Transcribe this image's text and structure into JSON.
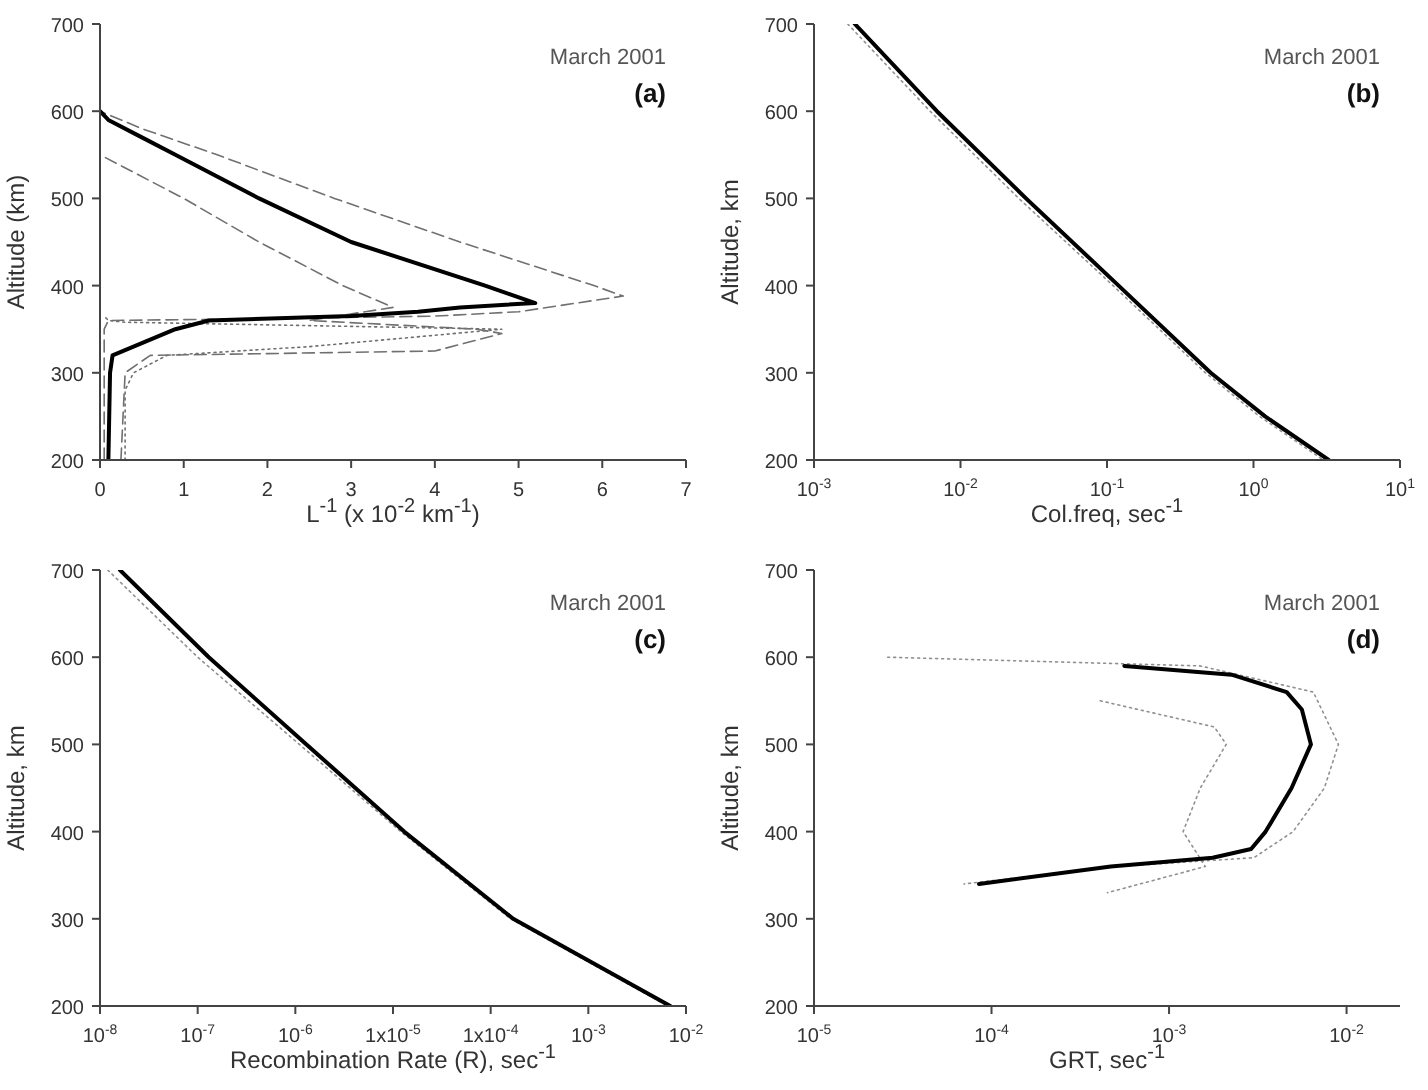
{
  "chart_data": [
    {
      "type": "line",
      "xlabel": "L$^{-1}$ (x 10$^{-2}$ km$^{-1}$)",
      "ylabel": "Altitude (km)",
      "annotations": [
        "March 2001",
        "(a)"
      ],
      "xlim": [
        0,
        7
      ],
      "xticks": [
        0,
        1,
        2,
        3,
        4,
        5,
        6,
        7
      ],
      "ylim": [
        200,
        700
      ],
      "yticks": [
        200,
        300,
        400,
        500,
        600,
        700
      ],
      "marker": "none",
      "series": [
        {
          "color": "#707070",
          "line_style": "dashed",
          "x": [
            0.05,
            0.05,
            0.1,
            2,
            4,
            5,
            6.25,
            5.9,
            4.3,
            2.8,
            1.4,
            0.5,
            0
          ],
          "values": [
            200,
            350,
            360,
            362,
            365,
            370,
            388,
            400,
            450,
            500,
            550,
            580,
            600
          ]
        },
        {
          "color": "#707070",
          "line_style": "dashed",
          "x": [
            0.25,
            0.3,
            0.6,
            2,
            4,
            4.8,
            4.5,
            2.5,
            3.5,
            2.9,
            1.9,
            1,
            0
          ],
          "values": [
            200,
            300,
            320,
            322,
            325,
            345,
            350,
            360,
            375,
            400,
            450,
            500,
            550
          ]
        },
        {
          "color": "#707070",
          "line_style": "dotted",
          "x": [
            0.3,
            0.3,
            0.4,
            0.8,
            2.5,
            4.8,
            2,
            0.3,
            0.1,
            0.05
          ],
          "values": [
            200,
            280,
            300,
            320,
            330,
            350,
            355,
            358,
            360,
            365
          ]
        },
        {
          "color": "#000000",
          "line_style": "solid",
          "x": [
            0.1,
            0.12,
            0.15,
            0.9,
            1.3,
            3,
            3.8,
            4.3,
            5.2,
            4.9,
            4.6,
            3,
            1.9,
            0.9,
            0.5,
            0.1,
            0
          ],
          "values": [
            200,
            300,
            320,
            350,
            360,
            365,
            370,
            375,
            380,
            390,
            400,
            450,
            500,
            550,
            570,
            590,
            600
          ]
        }
      ]
    },
    {
      "type": "line",
      "xlabel": "Col.freq, sec$^{-1}$",
      "ylabel": "Altitude, km",
      "annotations": [
        "March 2001",
        "(b)"
      ],
      "log": "x",
      "xlim": [
        0.001,
        10
      ],
      "xticks": [
        {
          "value": 0.001,
          "label": "10$^{-3}$"
        },
        {
          "value": 0.01,
          "label": "10$^{-2}$"
        },
        {
          "value": 0.1,
          "label": "10$^{-1}$"
        },
        {
          "value": 1,
          "label": "10$^{0}$"
        },
        {
          "value": 10,
          "label": "10$^{1}$"
        }
      ],
      "ylim": [
        200,
        700
      ],
      "yticks": [
        200,
        300,
        400,
        500,
        600,
        700
      ],
      "marker": "none",
      "series": [
        {
          "color": "#909090",
          "line_style": "dotted",
          "x": [
            0.0017,
            0.0062,
            0.025,
            0.11,
            0.47,
            1.1,
            3.0
          ],
          "values": [
            700,
            600,
            500,
            400,
            300,
            250,
            200
          ]
        },
        {
          "color": "#000000",
          "line_style": "solid",
          "x": [
            0.0019,
            0.0069,
            0.028,
            0.12,
            0.51,
            1.2,
            3.26
          ],
          "values": [
            700,
            600,
            500,
            400,
            300,
            250,
            200
          ]
        }
      ]
    },
    {
      "type": "line",
      "xlabel": "Recombination Rate (R), sec$^{-1}$",
      "ylabel": "Altitude, km",
      "annotations": [
        "March 2001",
        "(c)"
      ],
      "log": "x",
      "xlim": [
        1e-08,
        0.01
      ],
      "xticks": [
        {
          "value": 1e-08,
          "label": "10$^{-8}$"
        },
        {
          "value": 1e-07,
          "label": "10$^{-7}$"
        },
        {
          "value": 1e-06,
          "label": "10$^{-6}$"
        },
        {
          "value": 1e-05,
          "label": "1x10$^{-5}$"
        },
        {
          "value": 0.0001,
          "label": "1x10$^{-4}$"
        },
        {
          "value": 0.001,
          "label": "10$^{-3}$"
        },
        {
          "value": 0.01,
          "label": "10$^{-2}$"
        }
      ],
      "ylim": [
        200,
        700
      ],
      "yticks": [
        200,
        300,
        400,
        500,
        600,
        700
      ],
      "marker": "none",
      "series": [
        {
          "color": "#909090",
          "line_style": "dotted",
          "x": [
            1.2e-08,
            1e-07,
            1.1e-06,
            1.2e-05,
            0.00016,
            0.0065
          ],
          "values": [
            700,
            600,
            500,
            400,
            300,
            200
          ]
        },
        {
          "color": "#000000",
          "line_style": "solid",
          "x": [
            1.6e-08,
            1.3e-07,
            1.3e-06,
            1.3e-05,
            0.00017,
            0.0069
          ],
          "values": [
            700,
            600,
            500,
            400,
            300,
            200
          ]
        }
      ]
    },
    {
      "type": "line",
      "xlabel": "GRT, sec$^{-1}$",
      "ylabel": "Altitude, km",
      "annotations": [
        "March 2001",
        "(d)"
      ],
      "log": "x",
      "xlim": [
        1e-05,
        0.02
      ],
      "xticks": [
        {
          "value": 1e-05,
          "label": "10$^{-5}$"
        },
        {
          "value": 0.0001,
          "label": "10$^{-4}$"
        },
        {
          "value": 0.001,
          "label": "10$^{-3}$"
        },
        {
          "value": 0.01,
          "label": "10$^{-2}$"
        }
      ],
      "ylim": [
        200,
        700
      ],
      "yticks": [
        200,
        300,
        400,
        500,
        600,
        700
      ],
      "marker": "none",
      "series": [
        {
          "color": "#909090",
          "line_style": "dotted",
          "x": [
            2.6e-05,
            0.0015,
            0.0065,
            0.009,
            0.0075,
            0.005,
            0.003,
            0.0005,
            7e-05
          ],
          "values": [
            600,
            590,
            560,
            500,
            450,
            400,
            370,
            360,
            340
          ]
        },
        {
          "color": "#909090",
          "line_style": "dotted",
          "x": [
            0.00041,
            0.0018,
            0.0021,
            0.0015,
            0.0012,
            0.0016,
            0.00045
          ],
          "values": [
            550,
            520,
            500,
            450,
            400,
            360,
            330
          ]
        },
        {
          "color": "#000000",
          "line_style": "solid",
          "x": [
            0.00056,
            0.00225,
            0.0046,
            0.0056,
            0.0063,
            0.0049,
            0.0035,
            0.0029,
            0.00176,
            0.00047,
            8.5e-05
          ],
          "values": [
            590,
            580,
            560,
            540,
            500,
            450,
            400,
            380,
            370,
            360,
            340
          ]
        }
      ]
    }
  ]
}
